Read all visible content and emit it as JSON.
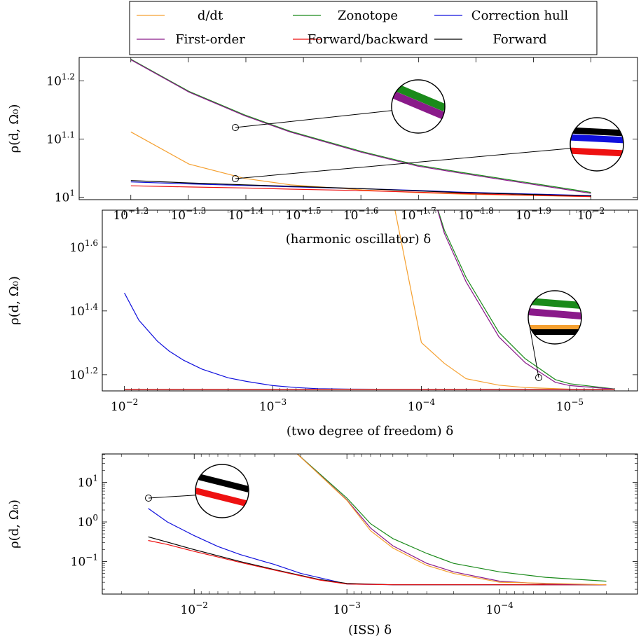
{
  "legend": {
    "placement": "top-center",
    "entries": [
      {
        "name": "d/dt",
        "color": "#f5a030"
      },
      {
        "name": "Zonotope",
        "color": "#1a8a1a"
      },
      {
        "name": "Correction hull",
        "color": "#1010dd"
      },
      {
        "name": "First-order",
        "color": "#8a1a8a"
      },
      {
        "name": "Forward/backward",
        "color": "#ee1111"
      },
      {
        "name": "Forward",
        "color": "#000000"
      }
    ]
  },
  "chart_data": [
    {
      "type": "line",
      "x_scale": "log",
      "y_scale": "log",
      "x_reversed": true,
      "xlabel": "(harmonic oscillator) δ",
      "ylabel": "ρ(d, Ω₀)",
      "xlim": [
        0.0776,
        0.0083
      ],
      "ylim": [
        9.9,
        17.4
      ],
      "xticks": [
        {
          "v": 0.0631,
          "label": "10",
          "exp": "−1.2"
        },
        {
          "v": 0.05012,
          "label": "10",
          "exp": "−1.3"
        },
        {
          "v": 0.03981,
          "label": "10",
          "exp": "−1.4"
        },
        {
          "v": 0.03162,
          "label": "10",
          "exp": "−1.5"
        },
        {
          "v": 0.02512,
          "label": "10",
          "exp": "−1.6"
        },
        {
          "v": 0.01995,
          "label": "10",
          "exp": "−1.7"
        },
        {
          "v": 0.01585,
          "label": "10",
          "exp": "−1.8"
        },
        {
          "v": 0.01259,
          "label": "10",
          "exp": "−1.9"
        },
        {
          "v": 0.01,
          "label": "10",
          "exp": "−2"
        }
      ],
      "yticks": [
        {
          "v": 10,
          "label": "10",
          "exp": "1"
        },
        {
          "v": 12.589,
          "label": "10",
          "exp": "1.1"
        },
        {
          "v": 15.849,
          "label": "10",
          "exp": "1.2"
        }
      ],
      "series": [
        {
          "name": "d/dt",
          "x": [
            0.0631,
            0.05,
            0.04,
            0.0333,
            0.025,
            0.02,
            0.0167,
            0.01
          ],
          "y": [
            12.95,
            11.4,
            10.77,
            10.5,
            10.29,
            10.18,
            10.12,
            10.02
          ]
        },
        {
          "name": "Zonotope",
          "x": [
            0.0631,
            0.05,
            0.04,
            0.0333,
            0.025,
            0.02,
            0.0167,
            0.01
          ],
          "y": [
            17.28,
            15.21,
            13.85,
            12.98,
            11.98,
            11.35,
            11.02,
            10.19
          ]
        },
        {
          "name": "First-order",
          "x": [
            0.0631,
            0.05,
            0.04,
            0.0333,
            0.025,
            0.02,
            0.0167,
            0.01
          ],
          "y": [
            17.24,
            15.17,
            13.81,
            12.94,
            11.94,
            11.31,
            10.98,
            10.15
          ]
        },
        {
          "name": "Correction hull",
          "x": [
            0.0631,
            0.05,
            0.04,
            0.0333,
            0.025,
            0.02,
            0.0167,
            0.01
          ],
          "y": [
            10.62,
            10.54,
            10.47,
            10.42,
            10.34,
            10.27,
            10.2,
            10.06
          ]
        },
        {
          "name": "Forward",
          "x": [
            0.0631,
            0.05,
            0.04,
            0.0333,
            0.025,
            0.02,
            0.0167,
            0.01
          ],
          "y": [
            10.68,
            10.58,
            10.5,
            10.44,
            10.34,
            10.25,
            10.18,
            10.04
          ]
        },
        {
          "name": "Forward/backward",
          "x": [
            0.0631,
            0.05,
            0.04,
            0.0333,
            0.025,
            0.02,
            0.0167,
            0.01
          ],
          "y": [
            10.46,
            10.41,
            10.37,
            10.32,
            10.26,
            10.2,
            10.14,
            10.02
          ]
        }
      ]
    },
    {
      "type": "line",
      "x_scale": "log",
      "y_scale": "log",
      "x_reversed": true,
      "xlabel": "(two degree of freedom) δ",
      "ylabel": "ρ(d, Ω₀)",
      "xlim": [
        0.0141,
        3.5e-06
      ],
      "ylim": [
        14.1,
        52.0
      ],
      "xticks": [
        {
          "v": 0.01,
          "label": "10",
          "exp": "−2"
        },
        {
          "v": 0.001,
          "label": "10",
          "exp": "−3"
        },
        {
          "v": 0.0001,
          "label": "10",
          "exp": "−4"
        },
        {
          "v": 1e-05,
          "label": "10",
          "exp": "−5"
        }
      ],
      "yticks": [
        {
          "v": 15.849,
          "label": "10",
          "exp": "1.2"
        },
        {
          "v": 25.119,
          "label": "10",
          "exp": "1.4"
        },
        {
          "v": 39.811,
          "label": "10",
          "exp": "1.6"
        }
      ],
      "series": [
        {
          "name": "Correction hull",
          "x": [
            0.01,
            0.008,
            0.006,
            0.005,
            0.004,
            0.003,
            0.002,
            0.0015,
            0.001,
            0.0007,
            0.0005,
            0.0003,
            0.0002,
            0.0001,
            5e-05,
            2e-05,
            5e-06
          ],
          "y": [
            28.6,
            23.5,
            20.2,
            18.8,
            17.6,
            16.5,
            15.5,
            15.1,
            14.65,
            14.45,
            14.33,
            14.28,
            14.27,
            14.27,
            14.26,
            14.26,
            14.26
          ]
        },
        {
          "name": "d/dt",
          "x": [
            0.00016,
            0.0001,
            7e-05,
            5e-05,
            3e-05,
            2e-05,
            1e-05,
            5e-06
          ],
          "y": [
            60,
            20.0,
            17.2,
            15.4,
            14.7,
            14.45,
            14.28,
            14.27
          ]
        },
        {
          "name": "Zonotope",
          "x": [
            8.5e-05,
            7e-05,
            5e-05,
            3e-05,
            2e-05,
            1.25e-05,
            1e-05,
            5e-06
          ],
          "y": [
            60,
            45,
            32,
            21.5,
            17.8,
            15.3,
            14.85,
            14.3
          ]
        },
        {
          "name": "First-order",
          "x": [
            8.5e-05,
            7e-05,
            5e-05,
            3e-05,
            2e-05,
            1.25e-05,
            1e-05,
            5e-06
          ],
          "y": [
            60,
            44,
            31,
            20.8,
            17.3,
            15.0,
            14.65,
            14.28
          ]
        },
        {
          "name": "Forward",
          "x": [
            0.01,
            5e-06
          ],
          "y": [
            14.27,
            14.27
          ]
        },
        {
          "name": "Forward/backward",
          "x": [
            0.01,
            5e-06
          ],
          "y": [
            14.26,
            14.26
          ]
        }
      ]
    },
    {
      "type": "line",
      "x_scale": "log",
      "y_scale": "log",
      "x_reversed": true,
      "xlabel": "(ISS) δ",
      "ylabel": "ρ(d, Ω₀)",
      "xlim": [
        0.04,
        1.25e-05
      ],
      "ylim": [
        0.0151,
        52.0
      ],
      "xticks": [
        {
          "v": 0.01,
          "label": "10",
          "exp": "−2"
        },
        {
          "v": 0.001,
          "label": "10",
          "exp": "−3"
        },
        {
          "v": 0.0001,
          "label": "10",
          "exp": "−4"
        }
      ],
      "yticks": [
        {
          "v": 0.1,
          "label": "10",
          "exp": "−1"
        },
        {
          "v": 1,
          "label": "10",
          "exp": "0"
        },
        {
          "v": 10,
          "label": "10",
          "exp": "1"
        }
      ],
      "series": [
        {
          "name": "Correction hull",
          "x": [
            0.02,
            0.015,
            0.01,
            0.007,
            0.005,
            0.003,
            0.002,
            0.001,
            0.0005,
            0.0001,
            5e-05,
            2e-05
          ],
          "y": [
            2.2,
            1.0,
            0.45,
            0.24,
            0.15,
            0.085,
            0.05,
            0.027,
            0.026,
            0.026,
            0.026,
            0.026
          ]
        },
        {
          "name": "Forward",
          "x": [
            0.02,
            0.015,
            0.01,
            0.007,
            0.005,
            0.003,
            0.0015,
            0.001,
            0.0005,
            0.0001,
            2e-05
          ],
          "y": [
            0.42,
            0.31,
            0.2,
            0.14,
            0.1,
            0.063,
            0.035,
            0.028,
            0.026,
            0.026,
            0.026
          ]
        },
        {
          "name": "Forward/backward",
          "x": [
            0.02,
            0.015,
            0.01,
            0.007,
            0.005,
            0.003,
            0.0015,
            0.001,
            0.0005,
            0.0001,
            2e-05
          ],
          "y": [
            0.34,
            0.27,
            0.18,
            0.13,
            0.095,
            0.061,
            0.034,
            0.027,
            0.026,
            0.026,
            0.026
          ]
        },
        {
          "name": "Zonotope",
          "x": [
            0.0022,
            0.001,
            0.0007,
            0.0005,
            0.0003,
            0.0002,
            0.0001,
            5e-05,
            2e-05
          ],
          "y": [
            60,
            4.0,
            0.9,
            0.38,
            0.16,
            0.09,
            0.055,
            0.04,
            0.032
          ]
        },
        {
          "name": "First-order",
          "x": [
            0.0022,
            0.001,
            0.0007,
            0.0005,
            0.0003,
            0.0002,
            0.0001,
            5e-05,
            2e-05
          ],
          "y": [
            60,
            3.6,
            0.7,
            0.25,
            0.09,
            0.055,
            0.032,
            0.027,
            0.026
          ]
        },
        {
          "name": "d/dt",
          "x": [
            0.0022,
            0.001,
            0.0007,
            0.0005,
            0.0003,
            0.0002,
            0.0001,
            2e-05
          ],
          "y": [
            60,
            3.5,
            0.6,
            0.22,
            0.08,
            0.05,
            0.03,
            0.026
          ]
        }
      ]
    }
  ]
}
